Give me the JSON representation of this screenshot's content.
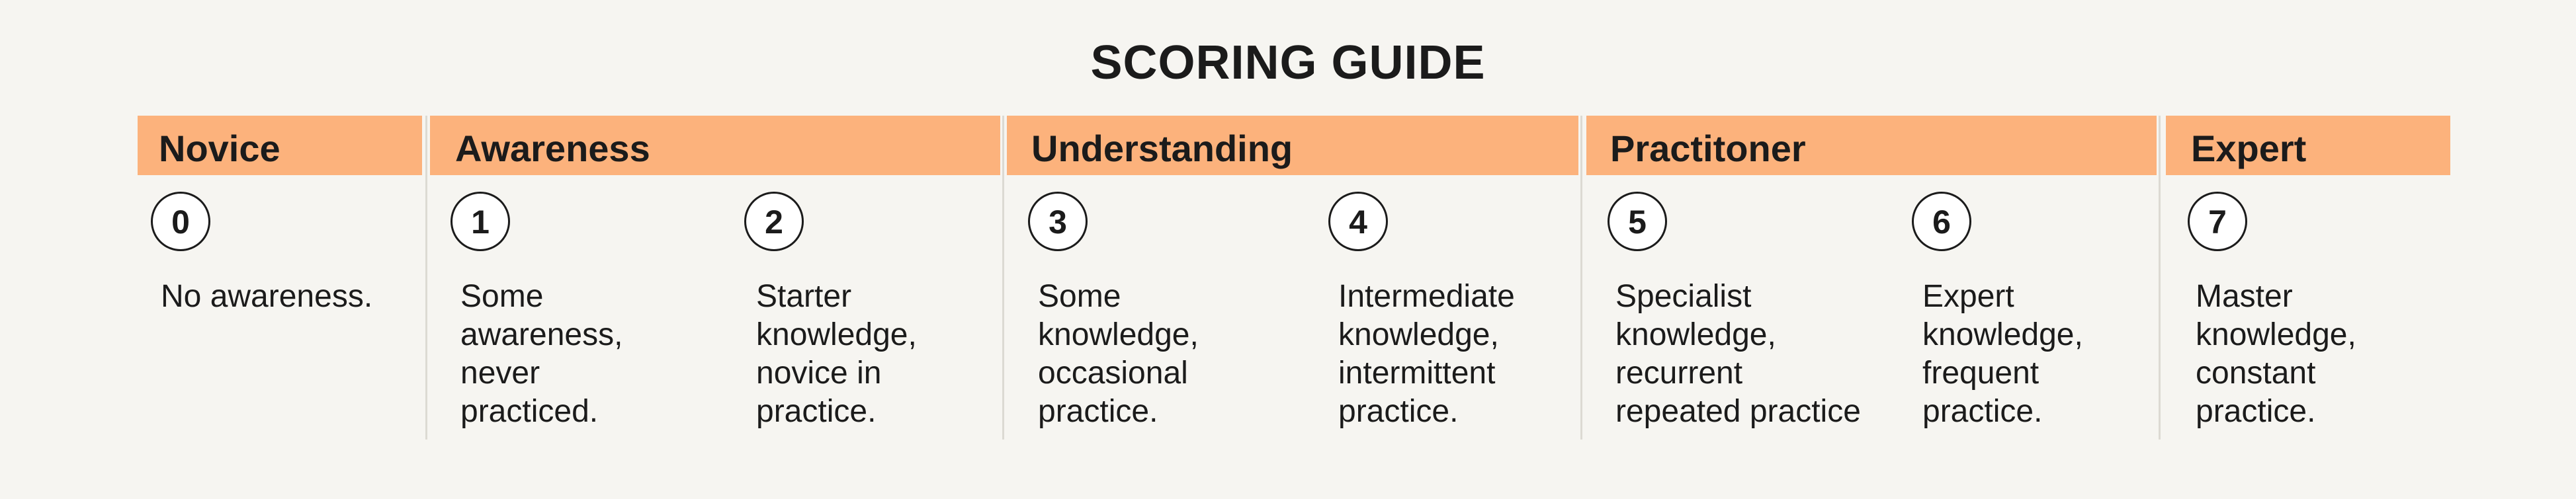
{
  "title": "SCORING GUIDE",
  "groups": [
    {
      "label": "Novice",
      "levels": [
        {
          "number": "0",
          "lines": [
            "No awareness."
          ]
        }
      ]
    },
    {
      "label": "Awareness",
      "levels": [
        {
          "number": "1",
          "lines": [
            "Some",
            "awareness,",
            "never",
            "practiced."
          ]
        },
        {
          "number": "2",
          "lines": [
            "Starter",
            "knowledge,",
            "novice in",
            "practice."
          ]
        }
      ]
    },
    {
      "label": "Understanding",
      "levels": [
        {
          "number": "3",
          "lines": [
            "Some",
            "knowledge,",
            "occasional",
            "practice."
          ]
        },
        {
          "number": "4",
          "lines": [
            "Intermediate",
            "knowledge,",
            "intermittent",
            "practice."
          ]
        }
      ]
    },
    {
      "label": "Practitoner",
      "levels": [
        {
          "number": "5",
          "lines": [
            "Specialist",
            "knowledge,",
            "recurrent",
            "repeated practice"
          ]
        },
        {
          "number": "6",
          "lines": [
            "Expert",
            "knowledge,",
            "frequent",
            "practice."
          ]
        }
      ]
    },
    {
      "label": "Expert",
      "levels": [
        {
          "number": "7",
          "lines": [
            "Master",
            "knowledge,",
            "constant",
            "practice."
          ]
        }
      ]
    }
  ]
}
